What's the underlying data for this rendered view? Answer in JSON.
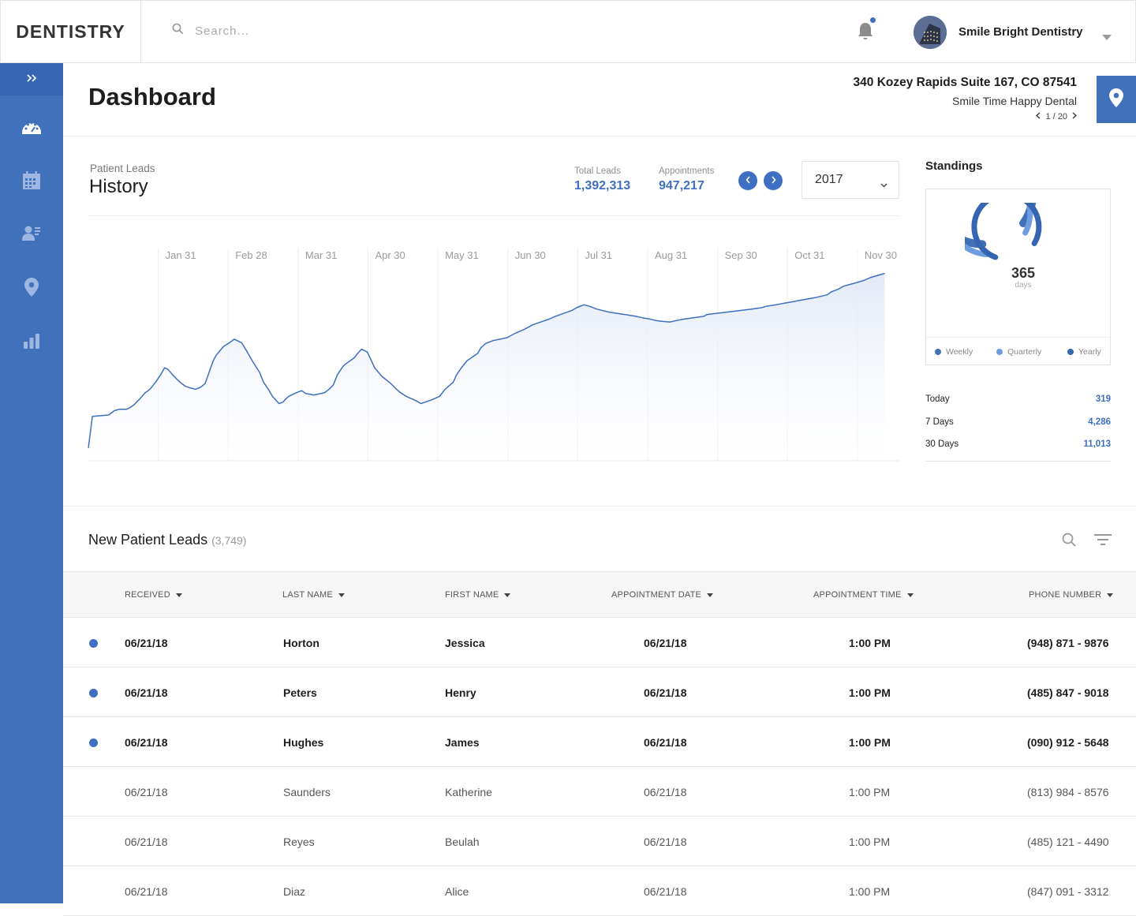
{
  "brand": "DENTISTRY",
  "search": {
    "placeholder": "Search..."
  },
  "account": {
    "name": "Smile Bright Dentistry"
  },
  "sidebar": {
    "items": [
      {
        "name": "dashboard",
        "icon": "speedometer-icon",
        "active": true
      },
      {
        "name": "calendar",
        "icon": "calendar-icon",
        "active": false
      },
      {
        "name": "patients",
        "icon": "patient-list-icon",
        "active": false
      },
      {
        "name": "locations",
        "icon": "map-pin-icon",
        "active": false
      },
      {
        "name": "reports",
        "icon": "bar-chart-icon",
        "active": false
      }
    ]
  },
  "header": {
    "title": "Dashboard",
    "address": "340 Kozey Rapids Suite 167, CO 87541",
    "practice": "Smile Time Happy Dental",
    "pager": "1 / 20"
  },
  "history": {
    "eyebrow": "Patient Leads",
    "title": "History",
    "total_leads_label": "Total Leads",
    "total_leads_value": "1,392,313",
    "appointments_label": "Appointments",
    "appointments_value": "947,217",
    "year": "2017"
  },
  "chart_data": {
    "type": "area",
    "months": [
      "Jan 31",
      "Feb 28",
      "Mar 31",
      "Apr 30",
      "May 31",
      "Jun 30",
      "Jul 31",
      "Aug 31",
      "Sep 30",
      "Oct 31",
      "Nov 30"
    ],
    "x": [
      0,
      0.5,
      1.5,
      2.5,
      3.2,
      3.5,
      3.8,
      4.2,
      4.7,
      5.1,
      5.6,
      6.3,
      7.0,
      7.6,
      8.3,
      8.9,
      9.4,
      9.8,
      10.4,
      11.1,
      11.5,
      12.0,
      12.5,
      13.2,
      13.7,
      14.0,
      14.4,
      15.4,
      15.8,
      16.3,
      16.7,
      17.4,
      18.0,
      18.9,
      19.6,
      20.3,
      21.1,
      21.6,
      22.3,
      22.7,
      23.1,
      23.5,
      24.0,
      24.3,
      24.7,
      25.4,
      26.3,
      26.8,
      27.8,
      29.1,
      29.7,
      30.2,
      30.7,
      31.4,
      31.8,
      32.3,
      32.8,
      33.2,
      33.7,
      34.4,
      35.3,
      36.2,
      37.3,
      38.0,
      38.4,
      39.2,
      40.4,
      41.0,
      42.3,
      43.3,
      44.0,
      45.0,
      45.4,
      46.0,
      46.7,
      48.0,
      48.4,
      49.0,
      49.9,
      51.6,
      52.6,
      53.8,
      54.8,
      55.8,
      56.8,
      57.6,
      58.6,
      59.6,
      60.2,
      61.1,
      61.8,
      62.7,
      64.1,
      65.2,
      66.4,
      67.5,
      68.3,
      69.3,
      70.0,
      70.7,
      71.7,
      72.5,
      73.4,
      74.6,
      75.9,
      76.2,
      76.6,
      77.4,
      78.9,
      80.3,
      81.8,
      83.0,
      83.6,
      84.8,
      85.7,
      86.7,
      87.6,
      88.6,
      89.6,
      91.1,
      91.6,
      92.5,
      93.1,
      94.4,
      95.6,
      96.4,
      98.2
    ],
    "y": [
      18,
      62,
      63,
      64,
      70,
      71,
      72,
      72,
      72,
      74,
      78,
      86,
      95,
      100,
      110,
      120,
      130,
      128,
      120,
      112,
      108,
      104,
      102,
      100,
      102,
      104,
      108,
      140,
      148,
      155,
      160,
      165,
      170,
      165,
      152,
      138,
      124,
      110,
      98,
      90,
      85,
      80,
      82,
      86,
      90,
      94,
      98,
      94,
      92,
      95,
      100,
      106,
      120,
      132,
      136,
      140,
      144,
      150,
      156,
      152,
      130,
      118,
      108,
      100,
      96,
      90,
      84,
      80,
      85,
      90,
      100,
      110,
      120,
      130,
      140,
      150,
      158,
      164,
      168,
      172,
      178,
      184,
      190,
      194,
      198,
      202,
      206,
      210,
      214,
      218,
      216,
      212,
      208,
      206,
      204,
      202,
      200,
      198,
      196,
      195,
      194,
      196,
      198,
      200,
      202,
      204,
      205,
      206,
      208,
      210,
      212,
      214,
      216,
      218,
      220,
      222,
      224,
      226,
      228,
      232,
      236,
      240,
      244,
      248,
      252,
      256,
      262
    ],
    "ylim": [
      0,
      300
    ],
    "grid": true
  },
  "standings": {
    "title": "Standings",
    "center_value": "365",
    "center_unit": "days",
    "rings": [
      {
        "name": "Weekly",
        "color": "#4270b8",
        "fraction": 0.85
      },
      {
        "name": "Quarterly",
        "color": "#6e9ddf",
        "fraction": 0.82
      },
      {
        "name": "Yearly",
        "color": "#3564b0",
        "fraction": 0.78
      }
    ],
    "rows": [
      {
        "label": "Today",
        "value": "319"
      },
      {
        "label": "7 Days",
        "value": "4,286"
      },
      {
        "label": "30 Days",
        "value": "11,013"
      }
    ]
  },
  "leads": {
    "title": "New Patient Leads",
    "count": "(3,749)",
    "columns": [
      "RECEIVED",
      "LAST NAME",
      "FIRST NAME",
      "APPOINTMENT DATE",
      "APPOINTMENT TIME",
      "PHONE NUMBER"
    ],
    "rows": [
      {
        "unread": true,
        "received": "06/21/18",
        "last": "Horton",
        "first": "Jessica",
        "date": "06/21/18",
        "time": "1:00 PM",
        "phone": "(948) 871 - 9876"
      },
      {
        "unread": true,
        "received": "06/21/18",
        "last": "Peters",
        "first": "Henry",
        "date": "06/21/18",
        "time": "1:00 PM",
        "phone": "(485) 847 - 9018"
      },
      {
        "unread": true,
        "received": "06/21/18",
        "last": "Hughes",
        "first": "James",
        "date": "06/21/18",
        "time": "1:00 PM",
        "phone": "(090) 912 - 5648"
      },
      {
        "unread": false,
        "received": "06/21/18",
        "last": "Saunders",
        "first": "Katherine",
        "date": "06/21/18",
        "time": "1:00 PM",
        "phone": "(813) 984 - 8576"
      },
      {
        "unread": false,
        "received": "06/21/18",
        "last": "Reyes",
        "first": "Beulah",
        "date": "06/21/18",
        "time": "1:00 PM",
        "phone": "(485) 121 - 4490"
      },
      {
        "unread": false,
        "received": "06/21/18",
        "last": "Diaz",
        "first": "Alice",
        "date": "06/21/18",
        "time": "1:00 PM",
        "phone": "(847) 091 - 3312"
      }
    ]
  },
  "colors": {
    "accent": "#3e6fc0",
    "sidebar": "#4171bb"
  }
}
